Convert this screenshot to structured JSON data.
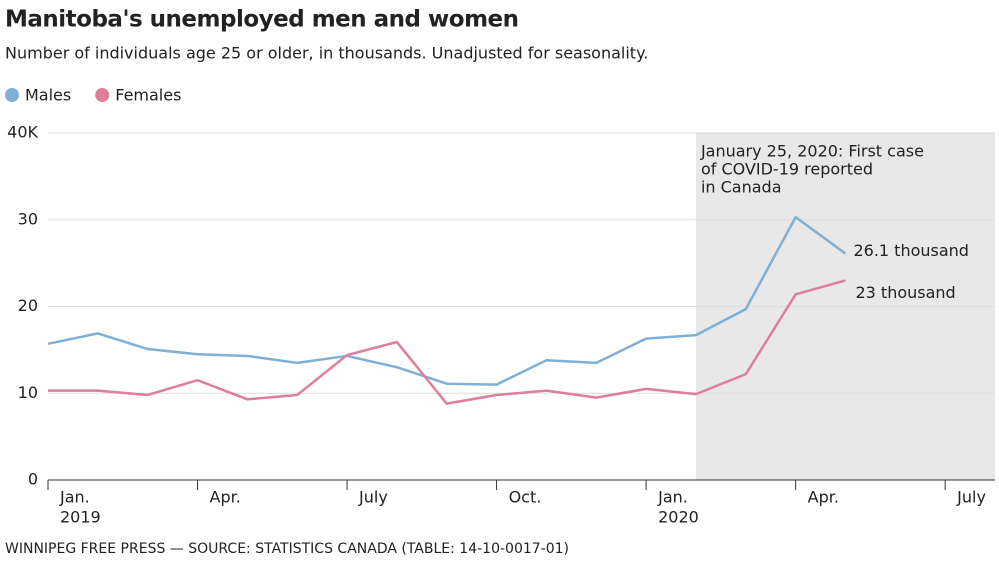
{
  "chart_data": {
    "type": "line",
    "title": "Manitoba's unemployed men and women",
    "subtitle": "Number of individuals age 25 or older, in thousands. Unadjusted for seasonality.",
    "source": "WINNIPEG FREE PRESS — SOURCE: STATISTICS CANADA (TABLE: 14-10-0017-01)",
    "x": [
      "2019-01",
      "2019-02",
      "2019-03",
      "2019-04",
      "2019-05",
      "2019-06",
      "2019-07",
      "2019-08",
      "2019-09",
      "2019-10",
      "2019-11",
      "2019-12",
      "2020-01",
      "2020-02",
      "2020-03",
      "2020-04",
      "2020-05"
    ],
    "series": [
      {
        "name": "Males",
        "color": "#7eb0d5",
        "values": [
          15.7,
          16.9,
          15.1,
          14.5,
          14.3,
          13.5,
          14.3,
          13.0,
          11.1,
          11.0,
          13.8,
          13.5,
          16.3,
          16.7,
          19.7,
          30.3,
          26.1
        ],
        "end_label": "26.1 thousand"
      },
      {
        "name": "Females",
        "color": "#de7e9b",
        "values": [
          10.3,
          10.3,
          9.8,
          11.5,
          9.3,
          9.8,
          14.4,
          15.9,
          8.8,
          9.8,
          10.3,
          9.5,
          10.5,
          9.9,
          12.2,
          21.4,
          23.0
        ],
        "end_label": "23 thousand"
      }
    ],
    "xlim": [
      "2019-01",
      "2020-08"
    ],
    "xticks": [
      {
        "value": "2019-01",
        "label": "Jan.",
        "year": "2019"
      },
      {
        "value": "2019-04",
        "label": "Apr."
      },
      {
        "value": "2019-07",
        "label": "July"
      },
      {
        "value": "2019-10",
        "label": "Oct."
      },
      {
        "value": "2020-01",
        "label": "Jan.",
        "year": "2020"
      },
      {
        "value": "2020-04",
        "label": "Apr."
      },
      {
        "value": "2020-07",
        "label": "July"
      }
    ],
    "ylim": [
      0,
      40
    ],
    "yticks": [
      0,
      10,
      20,
      30,
      {
        "value": 40,
        "label": "40K"
      }
    ],
    "grid": true,
    "annotation": {
      "date": "2020-02",
      "lines": [
        "January 25, 2020: First case",
        "of COVID-19 reported",
        "in Canada"
      ],
      "shade": "#e8e8e8"
    }
  }
}
